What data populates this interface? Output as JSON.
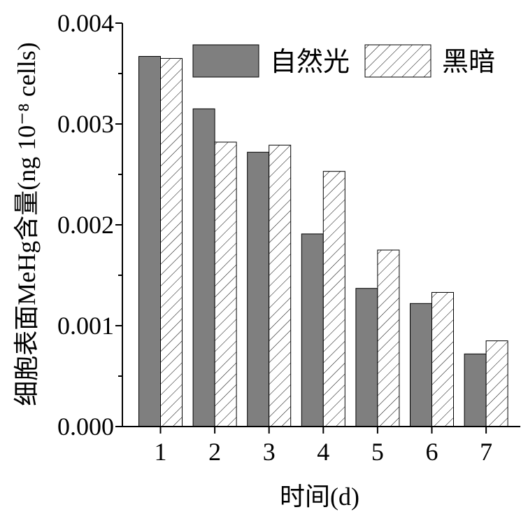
{
  "chart_data": {
    "type": "bar",
    "categories": [
      "1",
      "2",
      "3",
      "4",
      "5",
      "6",
      "7"
    ],
    "series": [
      {
        "name": "自然光",
        "values": [
          0.00367,
          0.00315,
          0.00272,
          0.00191,
          0.00137,
          0.00122,
          0.00072
        ],
        "color": "#7f7f7f",
        "pattern": "solid"
      },
      {
        "name": "黑暗",
        "values": [
          0.00365,
          0.00282,
          0.00279,
          0.00253,
          0.00175,
          0.00133,
          0.00085
        ],
        "color": "#ffffff",
        "pattern": "hatch"
      }
    ],
    "xlabel": "时间(d)",
    "ylabel": "细胞表面MeHg含量(ng 10⁻⁸ cells)",
    "ylim": [
      0,
      0.004
    ],
    "yticks": [
      "0.000",
      "0.001",
      "0.002",
      "0.003",
      "0.004"
    ],
    "ytick_values": [
      0,
      0.001,
      0.002,
      0.003,
      0.004
    ],
    "grid": false,
    "legend": "top-right"
  }
}
